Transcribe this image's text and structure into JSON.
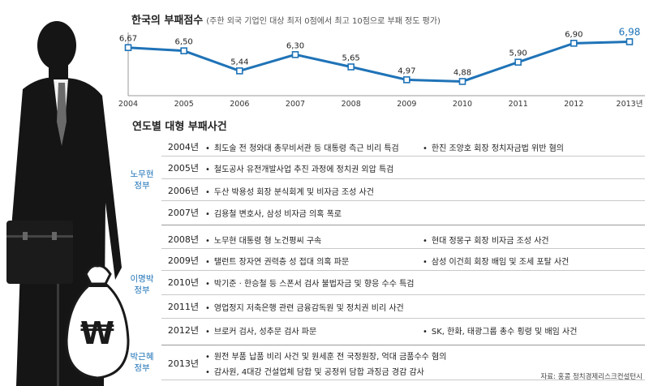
{
  "title": "한국의 부패점수",
  "subtitle": "(주한 외국 기업인 대상 최저 0점에서 최고 10점으로 부패 정도 평가)",
  "chart_data": {
    "type": "line",
    "title": "한국의 부패점수",
    "x": [
      "2004",
      "2005",
      "2006",
      "2007",
      "2008",
      "2009",
      "2010",
      "2011",
      "2012",
      "2013년"
    ],
    "values": [
      6.67,
      6.5,
      5.44,
      6.3,
      5.65,
      4.97,
      4.88,
      5.9,
      6.9,
      6.98
    ],
    "value_labels": [
      "6,67",
      "6,50",
      "5,44",
      "6,30",
      "5,65",
      "4,97",
      "4,88",
      "5,90",
      "6,90",
      "6,98"
    ],
    "ylim": [
      4.3,
      7.3
    ],
    "grid": false,
    "line_color": "#1f73b7",
    "highlight_color": "#1f73b7"
  },
  "section_title": "연도별 대형 부패사건",
  "administrations": [
    {
      "name_line1": "노무현",
      "name_line2": "정부"
    },
    {
      "name_line1": "이명박",
      "name_line2": "정부"
    },
    {
      "name_line1": "박근혜",
      "name_line2": "정부"
    }
  ],
  "admin_color": "#1f73b7",
  "rows": [
    {
      "year": "2004년",
      "items": [
        "최도술 전 청와대 총무비서관 등 대통령 측근 비리 특검",
        "한진 조양호 회장 정치자금법 위반 혐의"
      ]
    },
    {
      "year": "2005년",
      "items": [
        "철도공사 유전개발사업 추진 과정에 정치권 외압 특검"
      ]
    },
    {
      "year": "2006년",
      "items": [
        "두산 박용성 회장 분식회계 및 비자금 조성 사건"
      ]
    },
    {
      "year": "2007년",
      "items": [
        "김용철 변호사, 삼성 비자금 의혹 폭로"
      ]
    },
    {
      "year": "2008년",
      "items": [
        "노무현 대통령 형 노건평씨 구속",
        "현대 정몽구 회장 비자금 조성 사건"
      ]
    },
    {
      "year": "2009년",
      "items": [
        "탤런트 장자연 권력층 성 접대 의혹 파문",
        "삼성 이건희 회장 배임 및 조세 포탈 사건"
      ]
    },
    {
      "year": "2010년",
      "items": [
        "박기준 · 한승철 등 스폰서 검사 불법자금 및 향응 수수 특검"
      ]
    },
    {
      "year": "2011년",
      "items": [
        "영업정지 저축은행 관련 금융감독원 및 정치권 비리 사건"
      ]
    },
    {
      "year": "2012년",
      "items": [
        "브로커 검사, 성추문 검사 파문",
        "SK, 한화, 태광그룹 총수 횡령 및 배임 사건"
      ]
    },
    {
      "year": "2013년",
      "items": [
        "원전 부품 납품 비리 사건 및 원세훈 전 국정원장, 억대 금품수수 혐의",
        "감사원, 4대강 건설업체 담합 및 공정위 담합 과징금 경감 감사"
      ]
    }
  ],
  "source": "자료: 홍콩 정치경제리스크컨설턴시",
  "illustration": {
    "bag_symbol": "₩",
    "icon": "businessman-silhouette-with-money-bag"
  }
}
